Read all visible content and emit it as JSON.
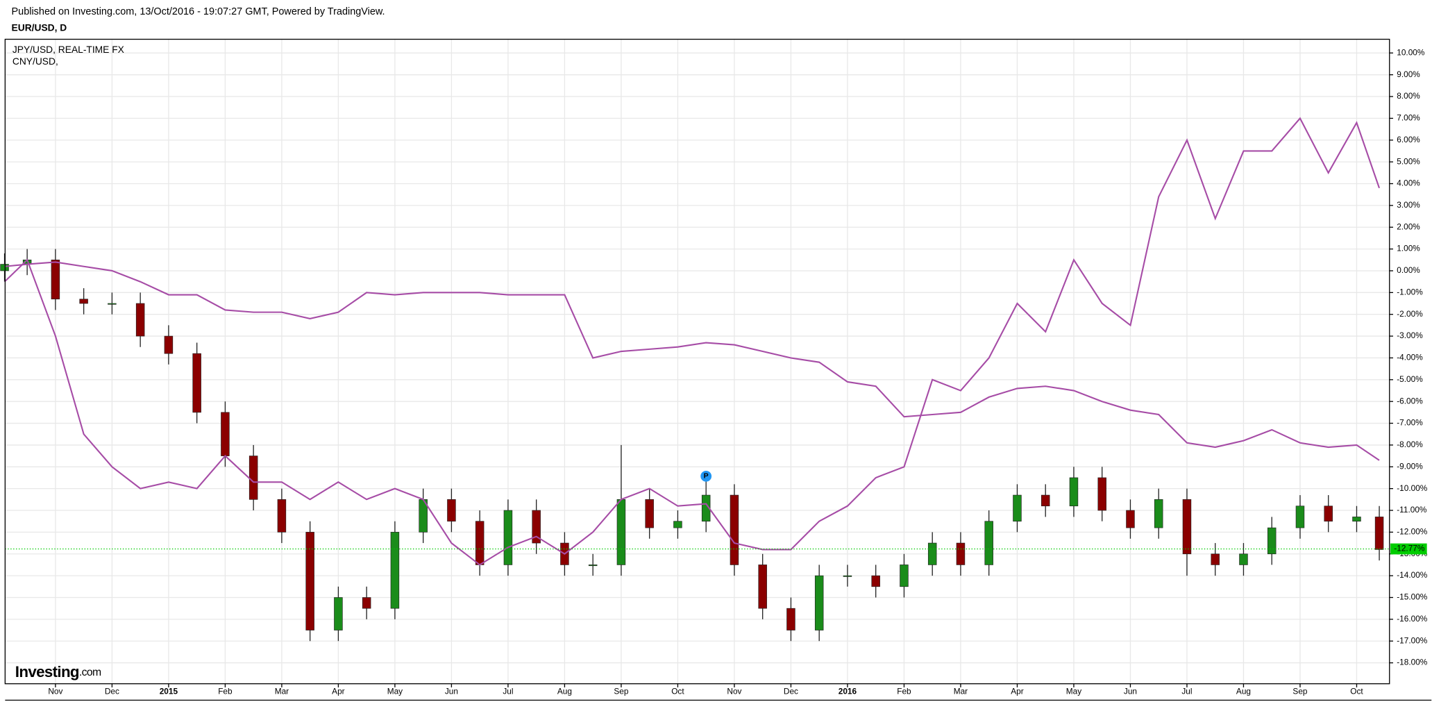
{
  "header": "Published on Investing.com, 13/Oct/2016 - 19:07:27 GMT, Powered by TradingView.",
  "logo": {
    "name": "Investing",
    "suffix": ".com"
  },
  "chart_data": {
    "type": "candlestick",
    "title": "EUR/USD, D",
    "x": [
      -0.9,
      -0.5,
      0,
      0.5,
      1,
      1.5,
      2,
      2.5,
      3,
      3.5,
      4,
      4.5,
      5,
      5.5,
      6,
      6.5,
      7,
      7.5,
      8,
      8.5,
      9,
      9.5,
      10,
      10.5,
      11,
      11.5,
      12,
      12.5,
      13,
      13.5,
      14,
      14.5,
      15,
      15.5,
      16,
      16.5,
      17,
      17.5,
      18,
      18.5,
      19,
      19.5,
      20,
      20.5,
      21,
      21.5,
      22,
      22.5,
      23,
      23.4
    ],
    "open": [
      0,
      0.3,
      0.5,
      -1.3,
      -1.5,
      -1.5,
      -3.0,
      -3.8,
      -6.5,
      -8.5,
      -10.5,
      -12.0,
      -16.5,
      -15.0,
      -15.5,
      -12.0,
      -10.5,
      -11.5,
      -13.5,
      -11.0,
      -12.5,
      -13.5,
      -13.5,
      -10.5,
      -11.8,
      -11.5,
      -10.3,
      -13.5,
      -15.5,
      -16.5,
      -14.0,
      -14.0,
      -14.5,
      -13.5,
      -12.5,
      -13.5,
      -11.5,
      -10.3,
      -10.8,
      -9.5,
      -11.0,
      -11.8,
      -10.5,
      -13.0,
      -13.5,
      -13.0,
      -11.8,
      -10.8,
      -11.5,
      -11.3
    ],
    "high": [
      0.8,
      1.0,
      1.0,
      -0.8,
      -1.0,
      -1.0,
      -2.5,
      -3.3,
      -6.0,
      -8.0,
      -10.0,
      -11.5,
      -14.5,
      -14.5,
      -11.5,
      -10.0,
      -10.0,
      -11.0,
      -10.5,
      -10.5,
      -12.0,
      -13.0,
      -8.0,
      -10.0,
      -11.0,
      -9.5,
      -9.8,
      -13.0,
      -15.0,
      -13.5,
      -13.5,
      -13.5,
      -13.0,
      -12.0,
      -12.0,
      -11.0,
      -9.8,
      -9.8,
      -9.0,
      -9.0,
      -10.5,
      -10.0,
      -10.0,
      -12.5,
      -12.5,
      -11.3,
      -10.3,
      -10.3,
      -10.8,
      -10.8
    ],
    "low": [
      -0.5,
      -0.2,
      -1.8,
      -2.0,
      -2.0,
      -3.5,
      -4.3,
      -7.0,
      -9.0,
      -11.0,
      -12.5,
      -17.0,
      -17.0,
      -16.0,
      -16.0,
      -12.5,
      -12.0,
      -14.0,
      -14.0,
      -13.0,
      -14.0,
      -14.0,
      -14.0,
      -12.3,
      -12.3,
      -12.0,
      -14.0,
      -16.0,
      -17.0,
      -17.0,
      -14.5,
      -15.0,
      -15.0,
      -14.0,
      -14.0,
      -14.0,
      -12.0,
      -11.3,
      -11.3,
      -11.5,
      -12.3,
      -12.3,
      -14.0,
      -14.0,
      -14.0,
      -13.5,
      -12.3,
      -12.0,
      -12.0,
      -13.3
    ],
    "close": [
      0.3,
      0.5,
      -1.3,
      -1.5,
      -1.5,
      -3.0,
      -3.8,
      -6.5,
      -8.5,
      -10.5,
      -12.0,
      -16.5,
      -15.0,
      -15.5,
      -12.0,
      -10.5,
      -11.5,
      -13.5,
      -11.0,
      -12.5,
      -13.5,
      -13.5,
      -10.5,
      -11.8,
      -11.5,
      -10.3,
      -13.5,
      -15.5,
      -16.5,
      -14.0,
      -14.0,
      -14.5,
      -13.5,
      -12.5,
      -13.5,
      -11.5,
      -10.3,
      -10.8,
      -9.5,
      -11.0,
      -11.8,
      -10.5,
      -13.0,
      -13.5,
      -13.0,
      -11.8,
      -10.8,
      -11.5,
      -11.3,
      -12.8
    ],
    "up_color": "#1a8c1a",
    "down_color": "#8b0000",
    "series": [
      {
        "name": "JPY/USD, REAL-TIME FX",
        "color": "#a64ca6",
        "values": [
          -0.5,
          0.5,
          -3.0,
          -7.5,
          -9.0,
          -10.0,
          -9.7,
          -10.0,
          -8.5,
          -9.7,
          -9.7,
          -10.5,
          -9.7,
          -10.5,
          -10.0,
          -10.5,
          -12.5,
          -13.5,
          -12.7,
          -12.2,
          -13.0,
          -12.0,
          -10.5,
          -10.0,
          -10.8,
          -10.7,
          -12.5,
          -12.8,
          -12.8,
          -11.5,
          -10.8,
          -9.5,
          -9.0,
          -5.0,
          -5.5,
          -4.0,
          -1.5,
          -2.8,
          0.5,
          -1.5,
          -2.5,
          3.4,
          6.0,
          2.4,
          5.5,
          5.5,
          7.0,
          4.5,
          6.8,
          3.8
        ]
      },
      {
        "name": "CNY/USD,",
        "color": "#a64ca6",
        "values": [
          0.2,
          0.3,
          0.4,
          0.2,
          0,
          -0.5,
          -1.1,
          -1.1,
          -1.8,
          -1.9,
          -1.9,
          -2.2,
          -1.9,
          -1.0,
          -1.1,
          -1.0,
          -1.0,
          -1.0,
          -1.1,
          -1.1,
          -1.1,
          -4.0,
          -3.7,
          -3.6,
          -3.5,
          -3.3,
          -3.4,
          -3.7,
          -4.0,
          -4.2,
          -5.1,
          -5.3,
          -6.7,
          -6.6,
          -6.5,
          -5.8,
          -5.4,
          -5.3,
          -5.5,
          -6.0,
          -6.4,
          -6.6,
          -7.9,
          -8.1,
          -7.8,
          -7.3,
          -7.9,
          -8.1,
          -8.0,
          -8.7
        ]
      }
    ],
    "price_line": {
      "value": -12.77,
      "label": "-12.77%",
      "color": "#00cc00"
    },
    "marker": {
      "label": "P",
      "x": 11.5,
      "y": -9.6,
      "color": "#2196f3"
    },
    "xlim": [
      -0.89,
      23.58
    ],
    "ylim": [
      -18.96,
      10.63
    ],
    "xticks": [
      {
        "value": 0,
        "label": "Nov"
      },
      {
        "value": 1,
        "label": "Dec"
      },
      {
        "value": 2,
        "label": "2015"
      },
      {
        "value": 3,
        "label": "Feb"
      },
      {
        "value": 4,
        "label": "Mar"
      },
      {
        "value": 5,
        "label": "Apr"
      },
      {
        "value": 6,
        "label": "May"
      },
      {
        "value": 7,
        "label": "Jun"
      },
      {
        "value": 8,
        "label": "Jul"
      },
      {
        "value": 9,
        "label": "Aug"
      },
      {
        "value": 10,
        "label": "Sep"
      },
      {
        "value": 11,
        "label": "Oct"
      },
      {
        "value": 12,
        "label": "Nov"
      },
      {
        "value": 13,
        "label": "Dec"
      },
      {
        "value": 14,
        "label": "2016"
      },
      {
        "value": 15,
        "label": "Feb"
      },
      {
        "value": 16,
        "label": "Mar"
      },
      {
        "value": 17,
        "label": "Apr"
      },
      {
        "value": 18,
        "label": "May"
      },
      {
        "value": 19,
        "label": "Jun"
      },
      {
        "value": 20,
        "label": "Jul"
      },
      {
        "value": 21,
        "label": "Aug"
      },
      {
        "value": 22,
        "label": "Sep"
      },
      {
        "value": 23,
        "label": "Oct"
      }
    ],
    "yticks": [
      {
        "value": 10,
        "label": "10.00%"
      },
      {
        "value": 9,
        "label": "9.00%"
      },
      {
        "value": 8,
        "label": "8.00%"
      },
      {
        "value": 7,
        "label": "7.00%"
      },
      {
        "value": 6,
        "label": "6.00%"
      },
      {
        "value": 5,
        "label": "5.00%"
      },
      {
        "value": 4,
        "label": "4.00%"
      },
      {
        "value": 3,
        "label": "3.00%"
      },
      {
        "value": 2,
        "label": "2.00%"
      },
      {
        "value": 1,
        "label": "1.00%"
      },
      {
        "value": 0,
        "label": "0.00%"
      },
      {
        "value": -1,
        "label": "-1.00%"
      },
      {
        "value": -2,
        "label": "-2.00%"
      },
      {
        "value": -3,
        "label": "-3.00%"
      },
      {
        "value": -4,
        "label": "-4.00%"
      },
      {
        "value": -5,
        "label": "-5.00%"
      },
      {
        "value": -6,
        "label": "-6.00%"
      },
      {
        "value": -7,
        "label": "-7.00%"
      },
      {
        "value": -8,
        "label": "-8.00%"
      },
      {
        "value": -9,
        "label": "-9.00%"
      },
      {
        "value": -10,
        "label": "-10.00%"
      },
      {
        "value": -11,
        "label": "-11.00%"
      },
      {
        "value": -12,
        "label": "-12.00%"
      },
      {
        "value": -13,
        "label": "-13.00%"
      },
      {
        "value": -14,
        "label": "-14.00%"
      },
      {
        "value": -15,
        "label": "-15.00%"
      },
      {
        "value": -16,
        "label": "-16.00%"
      },
      {
        "value": -17,
        "label": "-17.00%"
      },
      {
        "value": -18,
        "label": "-18.00%"
      }
    ],
    "grid": true
  }
}
